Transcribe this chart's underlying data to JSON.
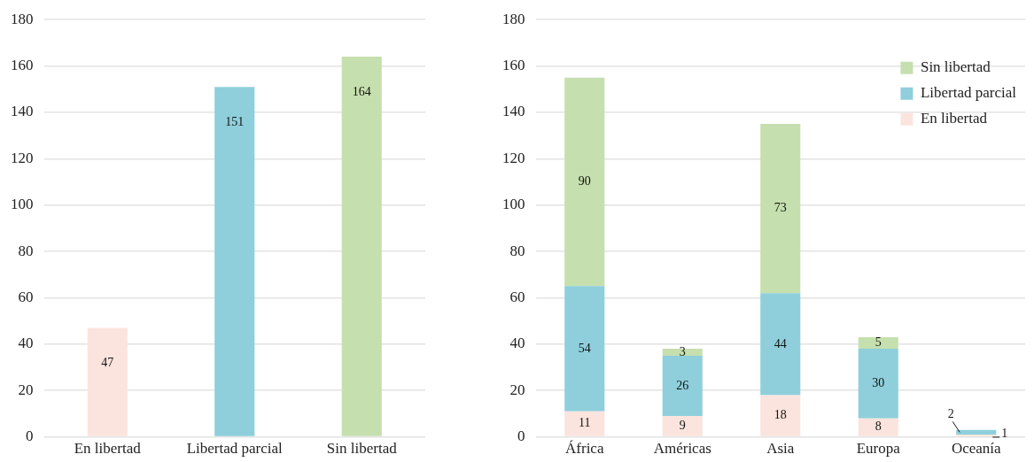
{
  "chart_data": [
    {
      "type": "bar",
      "categories": [
        "En libertad",
        "Libertad parcial",
        "Sin libertad"
      ],
      "values": [
        47,
        151,
        164
      ],
      "colors": [
        "#fbe4dd",
        "#8ecfdb",
        "#c5dfae"
      ],
      "ylim": [
        0,
        180
      ],
      "yticks": [
        0,
        20,
        40,
        60,
        80,
        100,
        120,
        140,
        160,
        180
      ],
      "grid": "y",
      "data_labels": true
    },
    {
      "type": "bar",
      "stacked": true,
      "categories": [
        "África",
        "Américas",
        "Asia",
        "Europa",
        "Oceanía"
      ],
      "series": [
        {
          "name": "En libertad",
          "color": "#fbe4dd",
          "values": [
            11,
            9,
            18,
            8,
            1
          ],
          "value_labels": [
            "11",
            "9",
            "18",
            "8",
            "1"
          ]
        },
        {
          "name": "Libertad parcial",
          "color": "#8ecfdb",
          "values": [
            54,
            26,
            44,
            30,
            2
          ],
          "value_labels": [
            "54",
            "26",
            "44",
            "30",
            "2"
          ]
        },
        {
          "name": "Sin libertad",
          "color": "#c5dfae",
          "values": [
            90,
            3,
            73,
            5,
            0
          ],
          "value_labels": [
            "90",
            "3",
            "73",
            "5",
            null
          ]
        }
      ],
      "ylim": [
        0,
        180
      ],
      "yticks": [
        0,
        20,
        40,
        60,
        80,
        100,
        120,
        140,
        160,
        180
      ],
      "grid": "y",
      "legend": "top right"
    }
  ]
}
